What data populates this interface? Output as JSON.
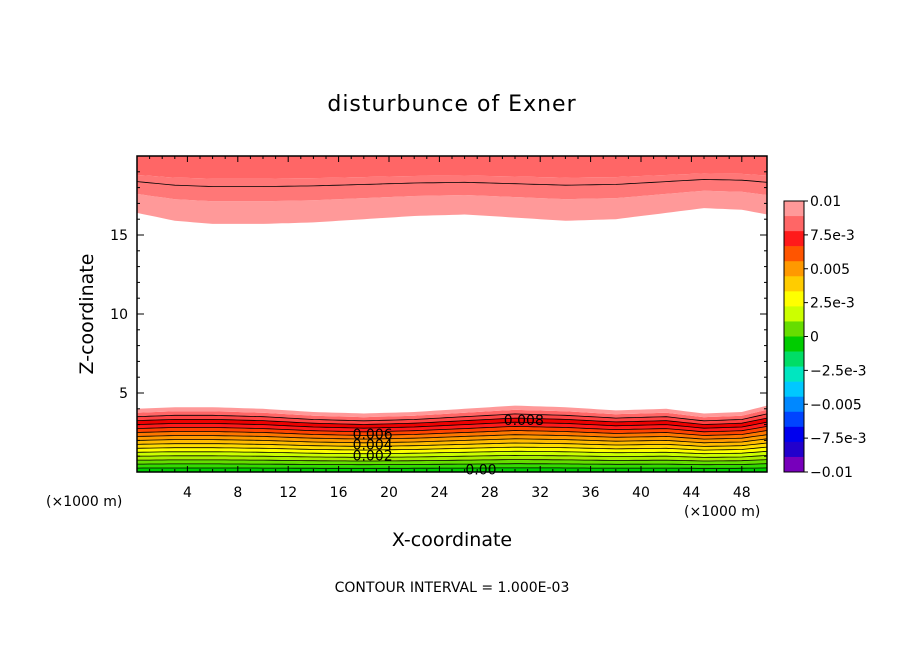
{
  "chart_data": {
    "type": "heatmap",
    "title": "disturbunce of Exner",
    "xlabel": "X-coordinate",
    "ylabel": "Z-coordinate",
    "x_unit_left": "(×1000 m)",
    "x_unit_right": "(×1000 m)",
    "footer": "CONTOUR INTERVAL = 1.000E-03",
    "xlim": [
      0,
      50
    ],
    "ylim": [
      0,
      20
    ],
    "x_ticks": [
      "4",
      "8",
      "12",
      "16",
      "20",
      "24",
      "28",
      "32",
      "36",
      "40",
      "44",
      "48"
    ],
    "y_ticks": [
      "5",
      "10",
      "15"
    ],
    "contour_interval": 0.001,
    "contour_labels": [
      "0.008",
      "0.006",
      "0.004",
      "0.002",
      "0.00"
    ],
    "colorbar": {
      "labels": [
        "0.01",
        "7.5e-3",
        "0.005",
        "2.5e-3",
        "0",
        "−2.5e-3",
        "−0.005",
        "−7.5e-3",
        "−0.01"
      ],
      "colors": [
        "#ff9999",
        "#ff6666",
        "#ff1a1a",
        "#ff5500",
        "#ff9900",
        "#ffcc00",
        "#ffff00",
        "#ccff00",
        "#66dd00",
        "#00cc00",
        "#00dd66",
        "#00e6c0",
        "#00c8ff",
        "#0088ff",
        "#0044ff",
        "#0000ee",
        "#2200cc",
        "#7700bb"
      ]
    },
    "bottom_layer": {
      "x": [
        0,
        3,
        6,
        10,
        14,
        18,
        22,
        26,
        30,
        34,
        38,
        42,
        45,
        48,
        50
      ],
      "top_of_band_z": [
        4.0,
        4.1,
        4.1,
        4.0,
        3.8,
        3.7,
        3.8,
        4.0,
        4.2,
        4.1,
        3.9,
        4.0,
        3.7,
        3.8,
        4.2
      ]
    },
    "upper_layer": {
      "x": [
        0,
        3,
        6,
        10,
        14,
        18,
        22,
        26,
        30,
        34,
        38,
        42,
        45,
        48,
        50
      ],
      "bottom_of_band_z": [
        16.4,
        15.9,
        15.7,
        15.7,
        15.8,
        16.0,
        16.2,
        16.3,
        16.1,
        15.9,
        16.0,
        16.4,
        16.7,
        16.6,
        16.3
      ]
    }
  }
}
